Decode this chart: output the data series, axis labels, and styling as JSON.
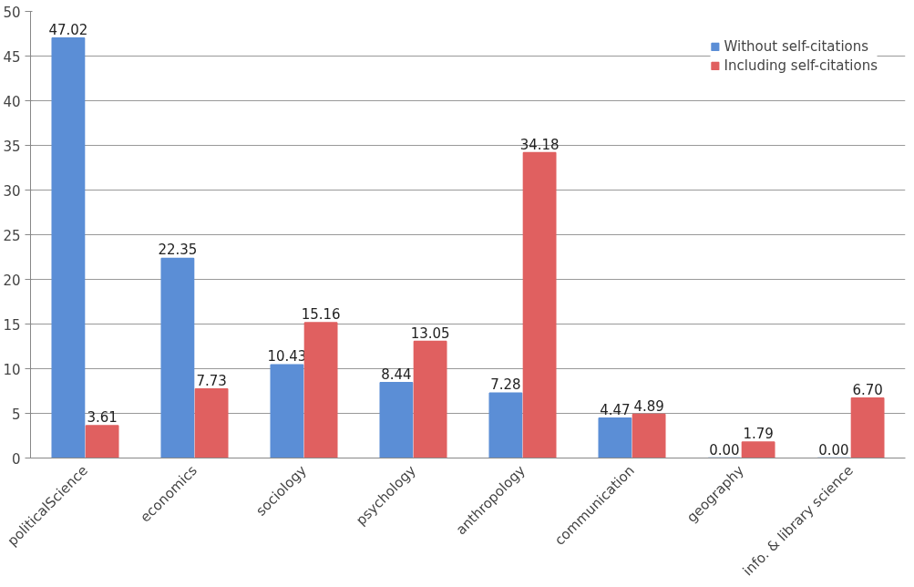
{
  "chart_data": {
    "type": "bar",
    "categories": [
      "politicalScience",
      "economics",
      "sociology",
      "psychology",
      "anthropology",
      "communication",
      "geography",
      "info. & library science"
    ],
    "series": [
      {
        "name": "Without self-citations",
        "color": "#5b8ed6",
        "values": [
          47.02,
          22.35,
          10.43,
          8.44,
          7.28,
          4.47,
          0.0,
          0.0
        ],
        "value_labels": [
          "47.02",
          "22.35",
          "10.43",
          "8.44",
          "7.28",
          "4.47",
          "0.00",
          "0.00"
        ]
      },
      {
        "name": "Including self-citations",
        "color": "#e06060",
        "values": [
          3.61,
          7.73,
          15.16,
          13.05,
          34.18,
          4.89,
          1.79,
          6.7
        ],
        "value_labels": [
          "3.61",
          "7.73",
          "15.16",
          "13.05",
          "34.18",
          "4.89",
          "1.79",
          "6.70"
        ]
      }
    ],
    "ylim": [
      0,
      50
    ],
    "yticks": [
      0,
      5,
      10,
      15,
      20,
      25,
      30,
      35,
      40,
      45,
      50
    ],
    "grid": "y",
    "legend": "top right"
  }
}
